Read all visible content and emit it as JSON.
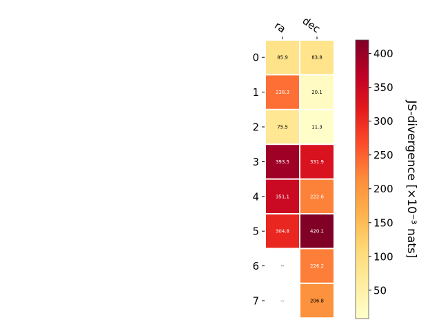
{
  "chart_data": {
    "type": "heatmap",
    "columns": [
      "ra",
      "dec"
    ],
    "rows": [
      "0",
      "1",
      "2",
      "3",
      "4",
      "5",
      "6",
      "7"
    ],
    "values": [
      [
        85.9,
        83.8
      ],
      [
        238.3,
        20.1
      ],
      [
        75.5,
        11.3
      ],
      [
        393.5,
        331.9
      ],
      [
        351.1,
        222.6
      ],
      [
        304.8,
        420.1
      ],
      [
        null,
        226.2
      ],
      [
        null,
        206.8
      ]
    ],
    "cell_labels": [
      [
        "85.9",
        "83.8"
      ],
      [
        "238.3",
        "20.1"
      ],
      [
        "75.5",
        "11.3"
      ],
      [
        "393.5",
        "331.9"
      ],
      [
        "351.1",
        "222.6"
      ],
      [
        "304.8",
        "420.1"
      ],
      [
        "--",
        "226.2"
      ],
      [
        "--",
        "206.8"
      ]
    ],
    "colormap": "YlOrRd",
    "colorbar": {
      "label": "JS-divergence [×10⁻³ nats]",
      "range": [
        8,
        420
      ],
      "ticks": [
        50,
        100,
        150,
        200,
        250,
        300,
        350,
        400
      ],
      "tick_labels": [
        "50",
        "100",
        "150",
        "200",
        "250",
        "300",
        "350",
        "400"
      ]
    }
  }
}
